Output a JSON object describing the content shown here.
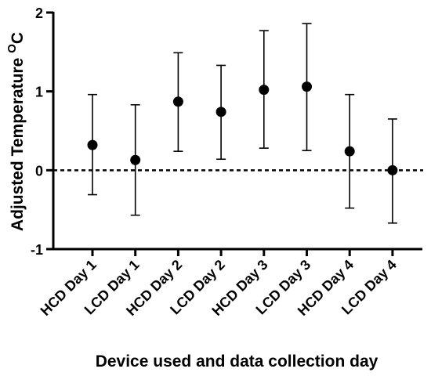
{
  "chart_data": {
    "type": "scatter",
    "categories": [
      "HCD Day 1",
      "LCD Day 1",
      "HCD Day 2",
      "LCD Day 2",
      "HCD Day 3",
      "LCD Day 3",
      "HCD Day 4",
      "LCD Day 4"
    ],
    "values": [
      0.32,
      0.13,
      0.87,
      0.74,
      1.02,
      1.06,
      0.24,
      0.0
    ],
    "error_low": [
      -0.31,
      -0.57,
      0.24,
      0.14,
      0.28,
      0.25,
      -0.48,
      -0.67
    ],
    "error_high": [
      0.96,
      0.83,
      1.49,
      1.33,
      1.77,
      1.86,
      0.96,
      0.65
    ],
    "xlabel": "Device used and data collection day",
    "ylabel": "Adjusted Temperature",
    "ylabel_unit": "O",
    "ylabel_unit_suffix": "C",
    "ylim": [
      -1,
      2
    ],
    "yticks": [
      "-1",
      "0",
      "1",
      "2"
    ],
    "reference_line": 0,
    "grid": false,
    "legend": "none",
    "colors": {
      "marker": "#000000",
      "axis": "#000000"
    }
  }
}
